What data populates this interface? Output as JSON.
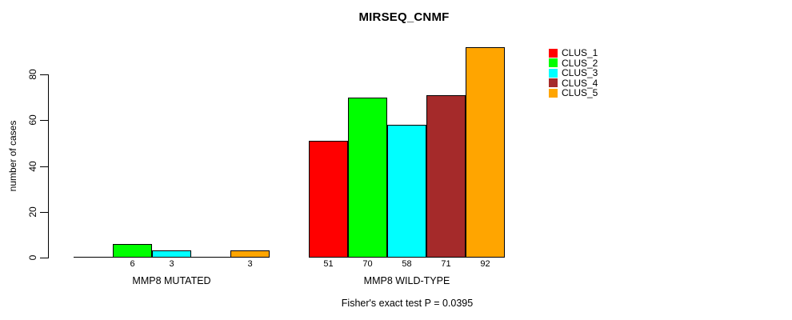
{
  "page_title": "MIRSEQ_CNMF",
  "chart_data": {
    "type": "bar",
    "title": "MIRSEQ_CNMF",
    "ylabel": "number of cases",
    "xlabel": "",
    "ylim": [
      0,
      92
    ],
    "yticks": [
      0,
      20,
      40,
      60,
      80
    ],
    "grid": false,
    "categories": [
      "MMP8 MUTATED",
      "MMP8 WILD-TYPE"
    ],
    "series": [
      {
        "name": "CLUS_1",
        "color": "#FF0000",
        "values": [
          0,
          51
        ]
      },
      {
        "name": "CLUS_2",
        "color": "#00FF00",
        "values": [
          6,
          70
        ]
      },
      {
        "name": "CLUS_3",
        "color": "#00FFFF",
        "values": [
          3,
          58
        ]
      },
      {
        "name": "CLUS_4",
        "color": "#A52A2A",
        "values": [
          0,
          71
        ]
      },
      {
        "name": "CLUS_5",
        "color": "#FFA500",
        "values": [
          3,
          92
        ]
      }
    ],
    "value_labels": [
      [
        "",
        "6",
        "3",
        "",
        "3"
      ],
      [
        "51",
        "70",
        "58",
        "71",
        "92"
      ]
    ],
    "legend": {
      "position": "right",
      "entries": [
        "CLUS_1",
        "CLUS_2",
        "CLUS_3",
        "CLUS_4",
        "CLUS_5"
      ]
    },
    "annotation": "Fisher's exact test P = 0.0395",
    "axis_color": "#000000",
    "bar_border_color": "#000000"
  }
}
